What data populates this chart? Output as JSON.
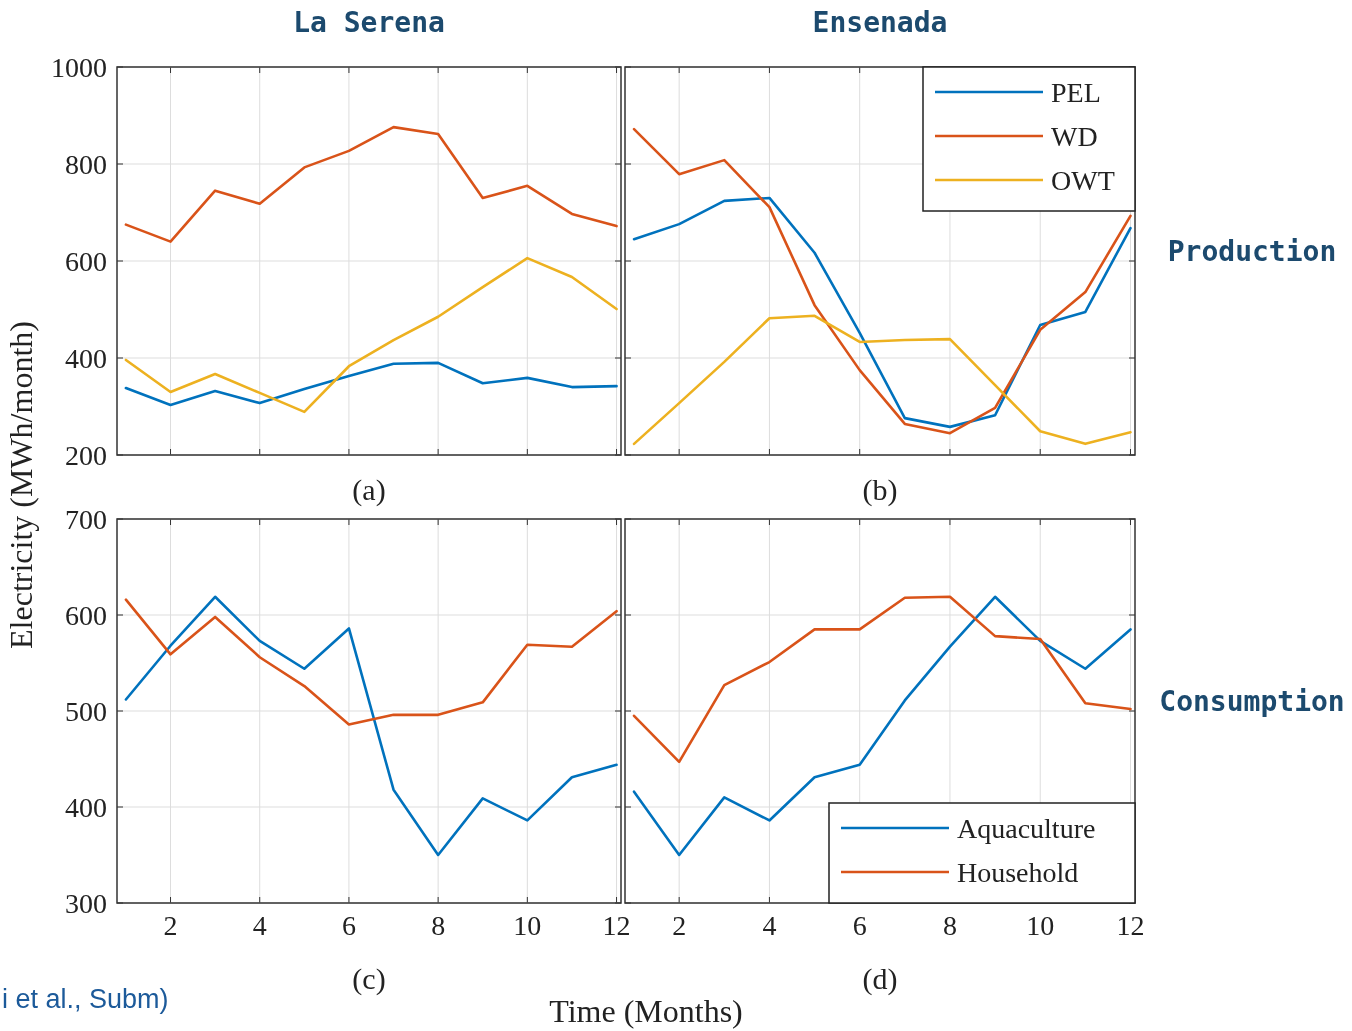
{
  "chart_data": [
    {
      "type": "line",
      "title": "La Serena",
      "ylabel": "Electricity (MWh/month)",
      "annotations": [
        "(a)"
      ],
      "x": [
        1,
        2,
        3,
        4,
        5,
        6,
        7,
        8,
        9,
        10,
        11,
        12
      ],
      "xlim": [
        0.8,
        12.1
      ],
      "xticks": [
        2,
        4,
        6,
        8,
        10,
        12
      ],
      "ylim": [
        200,
        1000
      ],
      "yticks": [
        200,
        400,
        600,
        800,
        1000
      ],
      "grid": true,
      "tick_labels": "y",
      "legend": false,
      "series": [
        {
          "color": "#0072bd",
          "values": [
            338,
            303,
            332,
            307,
            336,
            363,
            388,
            390,
            348,
            359,
            340,
            342
          ]
        },
        {
          "color": "#d95319",
          "values": [
            675,
            640,
            745,
            718,
            793,
            827,
            876,
            862,
            730,
            755,
            697,
            672
          ]
        },
        {
          "color": "#edb120",
          "values": [
            396,
            330,
            367,
            328,
            289,
            383,
            437,
            485,
            546,
            606,
            567,
            501
          ]
        }
      ]
    },
    {
      "type": "line",
      "title": "Ensenada",
      "annotations": [
        "(b)",
        "Production"
      ],
      "x": [
        1,
        2,
        3,
        4,
        5,
        6,
        7,
        8,
        9,
        10,
        11,
        12
      ],
      "xlim": [
        0.8,
        12.1
      ],
      "xticks": [
        2,
        4,
        6,
        8,
        10,
        12
      ],
      "ylim": [
        200,
        1000
      ],
      "yticks": [
        200,
        400,
        600,
        800,
        1000
      ],
      "grid": true,
      "tick_labels": false,
      "legend": "top right",
      "series": [
        {
          "name": "PEL",
          "color": "#0072bd",
          "values": [
            645,
            676,
            724,
            730,
            617,
            452,
            276,
            258,
            282,
            468,
            495,
            668
          ]
        },
        {
          "name": "WD",
          "color": "#d95319",
          "values": [
            872,
            779,
            808,
            711,
            509,
            375,
            264,
            245,
            297,
            458,
            536,
            693
          ]
        },
        {
          "name": "OWT",
          "color": "#edb120",
          "values": [
            223,
            307,
            392,
            482,
            487,
            433,
            437,
            439,
            344,
            249,
            223,
            247
          ]
        }
      ]
    },
    {
      "type": "line",
      "xlabel": "Time (Months)",
      "annotations": [
        "(c)",
        "i et al., Subm)"
      ],
      "x": [
        1,
        2,
        3,
        4,
        5,
        6,
        7,
        8,
        9,
        10,
        11,
        12
      ],
      "xlim": [
        0.8,
        12.1
      ],
      "xticks": [
        2,
        4,
        6,
        8,
        10,
        12
      ],
      "ylim": [
        300,
        700
      ],
      "yticks": [
        300,
        400,
        500,
        600,
        700
      ],
      "grid": true,
      "legend": false,
      "series": [
        {
          "color": "#0072bd",
          "values": [
            512,
            568,
            619,
            573,
            544,
            586,
            418,
            350,
            409,
            386,
            431,
            444
          ]
        },
        {
          "color": "#d95319",
          "values": [
            616,
            559,
            598,
            556,
            526,
            486,
            496,
            496,
            509,
            569,
            567,
            604
          ]
        }
      ]
    },
    {
      "type": "line",
      "annotations": [
        "(d)",
        "Consumption"
      ],
      "x": [
        1,
        2,
        3,
        4,
        5,
        6,
        7,
        8,
        9,
        10,
        11,
        12
      ],
      "xlim": [
        0.8,
        12.1
      ],
      "xticks": [
        2,
        4,
        6,
        8,
        10,
        12
      ],
      "ylim": [
        300,
        700
      ],
      "yticks": [
        300,
        400,
        500,
        600,
        700
      ],
      "grid": true,
      "tick_labels": "x",
      "legend": "bottom right",
      "series": [
        {
          "name": "Aquaculture",
          "color": "#0072bd",
          "values": [
            416,
            350,
            410,
            386,
            431,
            444,
            511,
            567,
            619,
            573,
            544,
            585
          ]
        },
        {
          "name": "Household",
          "color": "#d95319",
          "values": [
            495,
            447,
            527,
            551,
            585,
            585,
            618,
            619,
            578,
            575,
            508,
            502
          ]
        }
      ]
    }
  ]
}
